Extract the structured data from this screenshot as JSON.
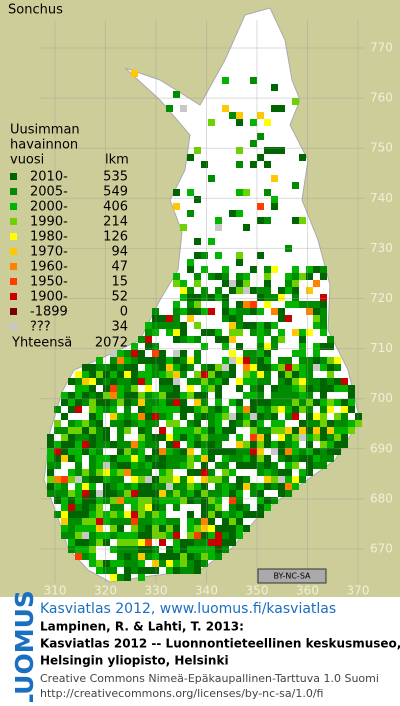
{
  "title": "Sonchus",
  "map": {
    "y_labels": [
      "770",
      "760",
      "750",
      "740",
      "730",
      "720",
      "710",
      "700",
      "690",
      "680",
      "670"
    ],
    "x_labels": [
      "310",
      "320",
      "330",
      "340",
      "350",
      "360",
      "370"
    ],
    "license_badge": "BY-NC-SA"
  },
  "legend": {
    "heading": [
      "Uusimman",
      "havainnon"
    ],
    "col_year": "vuosi",
    "col_count": "lkm",
    "rows": [
      {
        "label": "2010-",
        "count": "535",
        "color": "#006400"
      },
      {
        "label": "2005-",
        "count": "549",
        "color": "#008c00"
      },
      {
        "label": "2000-",
        "count": "406",
        "color": "#00b400"
      },
      {
        "label": "1990-",
        "count": "214",
        "color": "#6ed200"
      },
      {
        "label": "1980-",
        "count": "126",
        "color": "#ffff00"
      },
      {
        "label": "1970-",
        "count": "94",
        "color": "#ffc800"
      },
      {
        "label": "1960-",
        "count": "47",
        "color": "#ff8200"
      },
      {
        "label": "1950-",
        "count": "15",
        "color": "#ff3c00"
      },
      {
        "label": "1900-",
        "count": "52",
        "color": "#c80000"
      },
      {
        "label": "-1899",
        "count": "0",
        "color": "#780000"
      },
      {
        "label": "???",
        "count": "34",
        "color": "#c8c8c8"
      }
    ],
    "total_label": "Yhteensä",
    "total": "2072"
  },
  "footer": {
    "brand": "LUOMUS",
    "link": "Kasviatlas 2012, www.luomus.fi/kasviatlas",
    "citation": [
      "Lampinen, R. & Lahti, T. 2013:",
      "Kasviatlas 2012 -- Luonnontieteellinen keskusmuseo,",
      "Helsingin yliopisto, Helsinki"
    ],
    "license": [
      "Creative Commons Nimeä-Epäkaupallinen-Tarttuva 1.0 Suomi",
      "http://creativecommons.org/licenses/by-nc-sa/1.0/fi"
    ]
  }
}
